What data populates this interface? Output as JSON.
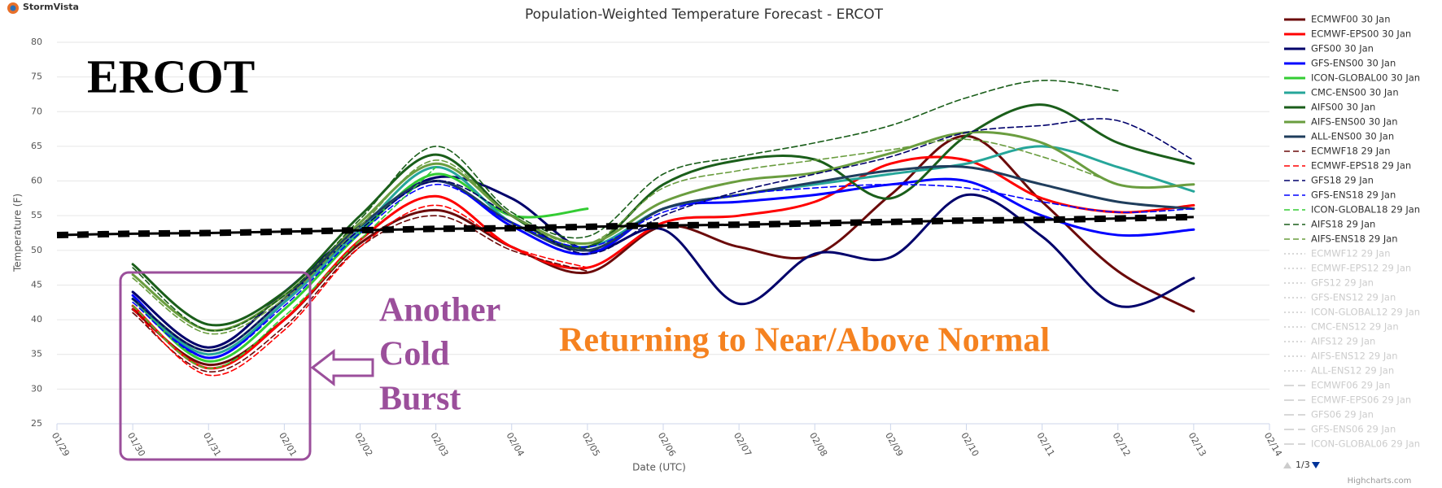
{
  "logo": "StormVista",
  "credit": "Highcharts.com",
  "legend_pager": "1/3",
  "chart_data": {
    "type": "line",
    "title": "Population-Weighted Temperature Forecast - ERCOT",
    "x_label": "Date (UTC)",
    "y_label": "Temperature (F)",
    "categories": [
      "01/29",
      "01/30",
      "01/31",
      "02/01",
      "02/02",
      "02/03",
      "02/04",
      "02/05",
      "02/06",
      "02/07",
      "02/08",
      "02/09",
      "02/10",
      "02/11",
      "02/12",
      "02/13",
      "02/14"
    ],
    "ylim": [
      25,
      80
    ],
    "yticks": [
      25,
      30,
      35,
      40,
      45,
      50,
      55,
      60,
      65,
      70,
      75,
      80
    ],
    "grid": true,
    "legend": "right",
    "annotations": {
      "region": "ERCOT",
      "cold": [
        "Another",
        "Cold",
        "Burst"
      ],
      "outlook": "Returning to Near/Above Normal"
    },
    "normal": {
      "color": "#000000",
      "values": [
        52.2,
        52.4,
        52.5,
        52.7,
        52.9,
        53.1,
        53.2,
        53.4,
        53.6,
        53.7,
        53.9,
        54.1,
        54.3,
        54.4,
        54.6,
        54.8,
        null
      ]
    },
    "series": [
      {
        "name": "ECMWF00 30 Jan",
        "color": "#6b0a0a",
        "dash": "solid",
        "visible": true,
        "values": [
          null,
          41.5,
          33.5,
          40,
          51,
          55.8,
          50.5,
          46.8,
          53.5,
          50.5,
          49.3,
          58,
          66.5,
          57,
          47,
          41.2,
          null
        ]
      },
      {
        "name": "ECMWF-EPS00 30 Jan",
        "color": "#ff0000",
        "dash": "solid",
        "visible": true,
        "values": [
          null,
          42,
          33,
          40,
          51.5,
          57.8,
          50.5,
          47.5,
          54,
          55,
          57,
          62.5,
          63,
          57.5,
          55.5,
          56.5,
          null
        ]
      },
      {
        "name": "GFS00 30 Jan",
        "color": "#00006b",
        "dash": "solid",
        "visible": true,
        "values": [
          null,
          44,
          36,
          44,
          53.5,
          60.5,
          57.5,
          50,
          53,
          42.3,
          49.5,
          49,
          58,
          52,
          42,
          46,
          null
        ]
      },
      {
        "name": "GFS-ENS00 30 Jan",
        "color": "#0000ff",
        "dash": "solid",
        "visible": true,
        "values": [
          null,
          43.5,
          34.5,
          42.5,
          53,
          60,
          53.5,
          49.5,
          56,
          57,
          58,
          59.5,
          60,
          55,
          52.2,
          53,
          null
        ]
      },
      {
        "name": "ICON-GLOBAL00 30 Jan",
        "color": "#33cc33",
        "dash": "solid",
        "visible": true,
        "values": [
          null,
          43,
          34,
          41.5,
          52.5,
          61,
          55,
          56,
          null,
          null,
          null,
          null,
          null,
          null,
          null,
          null,
          null
        ]
      },
      {
        "name": "CMC-ENS00 30 Jan",
        "color": "#26a69a",
        "dash": "solid",
        "visible": true,
        "values": [
          null,
          43,
          35,
          42.5,
          53,
          62,
          54,
          50.5,
          56,
          58,
          59.5,
          61,
          62.5,
          65,
          62,
          58.5,
          null
        ]
      },
      {
        "name": "AIFS00 30 Jan",
        "color": "#1a5e1a",
        "dash": "solid",
        "visible": true,
        "values": [
          null,
          48,
          39.3,
          44,
          55,
          63.8,
          55,
          50.5,
          59.5,
          63,
          63.1,
          57.5,
          66.5,
          71,
          65.5,
          62.5,
          null
        ]
      },
      {
        "name": "AIFS-ENS00 30 Jan",
        "color": "#6a9d3f",
        "dash": "solid",
        "visible": true,
        "values": [
          null,
          46.5,
          38.5,
          43.5,
          54,
          62.5,
          55,
          51,
          57,
          60,
          61.2,
          64,
          67,
          65.5,
          59.5,
          59.5,
          null
        ]
      },
      {
        "name": "ALL-ENS00 30 Jan",
        "color": "#1f3d5c",
        "dash": "solid",
        "visible": true,
        "values": [
          null,
          43,
          35.5,
          43,
          53.5,
          60,
          54,
          50,
          56,
          58,
          59.8,
          61.5,
          62,
          59.5,
          57,
          56,
          null
        ]
      },
      {
        "name": "ECMWF18 29 Jan",
        "color": "#6b0a0a",
        "dash": "dash",
        "visible": true,
        "values": [
          null,
          41,
          32.5,
          39,
          50.5,
          55,
          50,
          47,
          null,
          null,
          null,
          null,
          null,
          null,
          null,
          null,
          null
        ]
      },
      {
        "name": "ECMWF-EPS18 29 Jan",
        "color": "#ff0000",
        "dash": "dash",
        "visible": true,
        "values": [
          null,
          41.5,
          32,
          38.5,
          50.5,
          56.5,
          50.5,
          47.5,
          null,
          null,
          null,
          null,
          null,
          null,
          null,
          null,
          null
        ]
      },
      {
        "name": "GFS18 29 Jan",
        "color": "#00006b",
        "dash": "dash",
        "visible": true,
        "values": [
          null,
          43,
          35.5,
          43,
          53,
          60,
          55,
          49.5,
          55,
          58.5,
          61,
          63.5,
          67,
          68,
          68.7,
          63,
          null
        ]
      },
      {
        "name": "GFS-ENS18 29 Jan",
        "color": "#0000ff",
        "dash": "dash",
        "visible": true,
        "values": [
          null,
          42.5,
          34.5,
          42,
          52.5,
          59.5,
          54,
          50.5,
          55.5,
          58,
          59,
          59.5,
          59,
          57,
          55.5,
          56,
          null
        ]
      },
      {
        "name": "ICON-GLOBAL18 29 Jan",
        "color": "#33cc33",
        "dash": "dash",
        "visible": true,
        "values": [
          null,
          42,
          33,
          40.5,
          51.5,
          62,
          null,
          null,
          null,
          null,
          null,
          null,
          null,
          null,
          null,
          null,
          null
        ]
      },
      {
        "name": "AIFS18 29 Jan",
        "color": "#1a5e1a",
        "dash": "dash",
        "visible": true,
        "values": [
          null,
          47.5,
          38.5,
          43.5,
          54.5,
          65,
          55.5,
          52,
          61,
          63.5,
          65.5,
          68,
          72,
          74.5,
          73,
          null,
          null
        ]
      },
      {
        "name": "AIFS-ENS18 29 Jan",
        "color": "#6a9d3f",
        "dash": "dash",
        "visible": true,
        "values": [
          null,
          46,
          38,
          43,
          53.5,
          63,
          55,
          51,
          59,
          61.5,
          63,
          64.5,
          66,
          63.5,
          59.5,
          null,
          null
        ]
      },
      {
        "name": "ECMWF12 29 Jan",
        "dash": "dot",
        "visible": false
      },
      {
        "name": "ECMWF-EPS12 29 Jan",
        "dash": "dot",
        "visible": false
      },
      {
        "name": "GFS12 29 Jan",
        "dash": "dot",
        "visible": false
      },
      {
        "name": "GFS-ENS12 29 Jan",
        "dash": "dot",
        "visible": false
      },
      {
        "name": "ICON-GLOBAL12 29 Jan",
        "dash": "dot",
        "visible": false
      },
      {
        "name": "CMC-ENS12 29 Jan",
        "dash": "dot",
        "visible": false
      },
      {
        "name": "AIFS12 29 Jan",
        "dash": "dot",
        "visible": false
      },
      {
        "name": "AIFS-ENS12 29 Jan",
        "dash": "dot",
        "visible": false
      },
      {
        "name": "ALL-ENS12 29 Jan",
        "dash": "dot",
        "visible": false
      },
      {
        "name": "ECMWF06 29 Jan",
        "dash": "longdash",
        "visible": false
      },
      {
        "name": "ECMWF-EPS06 29 Jan",
        "dash": "longdash",
        "visible": false
      },
      {
        "name": "GFS06 29 Jan",
        "dash": "longdash",
        "visible": false
      },
      {
        "name": "GFS-ENS06 29 Jan",
        "dash": "longdash",
        "visible": false
      },
      {
        "name": "ICON-GLOBAL06 29 Jan",
        "dash": "longdash",
        "visible": false
      }
    ]
  }
}
